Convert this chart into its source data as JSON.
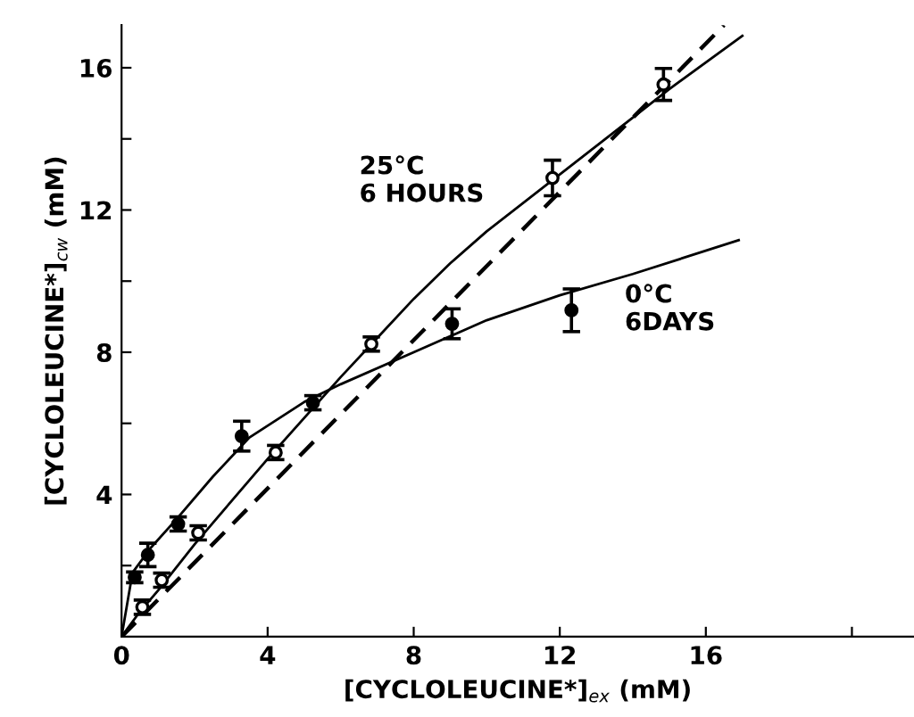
{
  "chart_data": {
    "type": "scatter",
    "xlabel": "[CYCLOLEUCINE*]$_{ex}$ (mM)",
    "ylabel": "[CYCLOLEUCINE*]$_{cw}$ (mM)",
    "xlim": [
      0,
      21.7
    ],
    "ylim": [
      0,
      17.2
    ],
    "xticks": [
      0,
      4,
      8,
      12,
      16,
      {
        "value": 20,
        "label": null
      }
    ],
    "yticks": [
      {
        "value": 2,
        "label": null
      },
      4,
      {
        "value": 6,
        "label": null
      },
      8,
      {
        "value": 10,
        "label": null
      },
      12,
      {
        "value": 14,
        "label": null
      },
      16
    ],
    "grid": false,
    "legend": false,
    "series": [
      {
        "color": "#ffffff",
        "marker": "circle",
        "x": [
          0.57,
          1.1,
          2.1,
          4.22,
          6.84,
          11.8,
          14.84
        ],
        "values": [
          0.83,
          1.59,
          2.92,
          5.18,
          8.23,
          12.9,
          15.53
        ],
        "errors": [
          0.2,
          0.2,
          0.2,
          0.2,
          0.2,
          0.5,
          0.45
        ]
      },
      {
        "color": "#000000",
        "marker": "circle",
        "x": [
          0.36,
          0.72,
          1.55,
          3.29,
          5.24,
          9.05,
          12.32
        ],
        "values": [
          1.67,
          2.3,
          3.17,
          5.64,
          6.58,
          8.8,
          9.18
        ],
        "errors": [
          0.15,
          0.33,
          0.2,
          0.42,
          0.2,
          0.42,
          0.6
        ]
      },
      {
        "type": "line",
        "color": "#000000",
        "marker": "none",
        "line_style": "solid",
        "x": [
          0,
          0.5,
          1,
          2,
          4,
          6,
          7,
          8,
          9,
          10,
          12,
          14,
          15,
          17
        ],
        "values": [
          0,
          0.7,
          1.3,
          2.6,
          5.0,
          7.3,
          8.4,
          9.5,
          10.5,
          11.4,
          13.0,
          14.6,
          15.4,
          16.9
        ]
      },
      {
        "type": "line",
        "color": "#000000",
        "marker": "none",
        "line_style": "solid",
        "x": [
          0,
          0.3,
          0.8,
          1.5,
          2.5,
          3.5,
          5,
          6,
          8,
          10,
          12,
          14,
          16.9
        ],
        "values": [
          0,
          1.8,
          2.5,
          3.3,
          4.5,
          5.6,
          6.6,
          7.1,
          8.0,
          8.9,
          9.6,
          10.2,
          11.15
        ]
      },
      {
        "type": "line",
        "color": "#000000",
        "marker": "none",
        "line_style": "dashed",
        "x": [
          0,
          16.5
        ],
        "values": [
          0,
          17.2
        ]
      }
    ],
    "annotations": [
      "25°C\n6 HOURS",
      "0°C\n6DAYS"
    ]
  }
}
